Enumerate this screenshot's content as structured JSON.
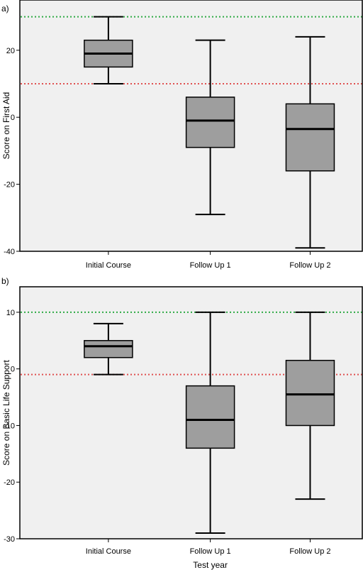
{
  "chart_data": [
    {
      "type": "box",
      "panel_label": "a)",
      "ylabel": "Score on First Aid",
      "xlabel": "",
      "ylim": [
        -40,
        35
      ],
      "yticks": [
        20,
        0,
        -20,
        -40
      ],
      "grid": false,
      "background": "#f0f0f0",
      "box_color": "#9e9e9e",
      "categories": [
        "Initial Course",
        "Follow Up 1",
        "Follow Up 2"
      ],
      "boxes": [
        {
          "min": 10,
          "q1": 15,
          "median": 19,
          "q3": 23,
          "max": 30
        },
        {
          "min": -29,
          "q1": -9,
          "median": -1,
          "q3": 6,
          "max": 23
        },
        {
          "min": -39,
          "q1": -16,
          "median": -3.5,
          "q3": 4,
          "max": 24
        }
      ],
      "reference_lines": [
        {
          "value": 30,
          "color": "#2eaa44"
        },
        {
          "value": 10,
          "color": "#e05050"
        }
      ]
    },
    {
      "type": "box",
      "panel_label": "b)",
      "ylabel": "Score on Basic Life Support",
      "xlabel": "Test year",
      "ylim": [
        -30,
        14.5
      ],
      "yticks": [
        10,
        0,
        -10,
        -20,
        -30
      ],
      "grid": false,
      "background": "#f0f0f0",
      "box_color": "#9e9e9e",
      "categories": [
        "Initial Course",
        "Follow Up 1",
        "Follow Up 2"
      ],
      "boxes": [
        {
          "min": -1,
          "q1": 2,
          "median": 4,
          "q3": 5,
          "max": 8
        },
        {
          "min": -29,
          "q1": -14,
          "median": -9,
          "q3": -3,
          "max": 10
        },
        {
          "min": -23,
          "q1": -10,
          "median": -4.5,
          "q3": 1.5,
          "max": 10
        }
      ],
      "reference_lines": [
        {
          "value": 10,
          "color": "#2eaa44"
        },
        {
          "value": -1,
          "color": "#e05050"
        }
      ]
    }
  ]
}
